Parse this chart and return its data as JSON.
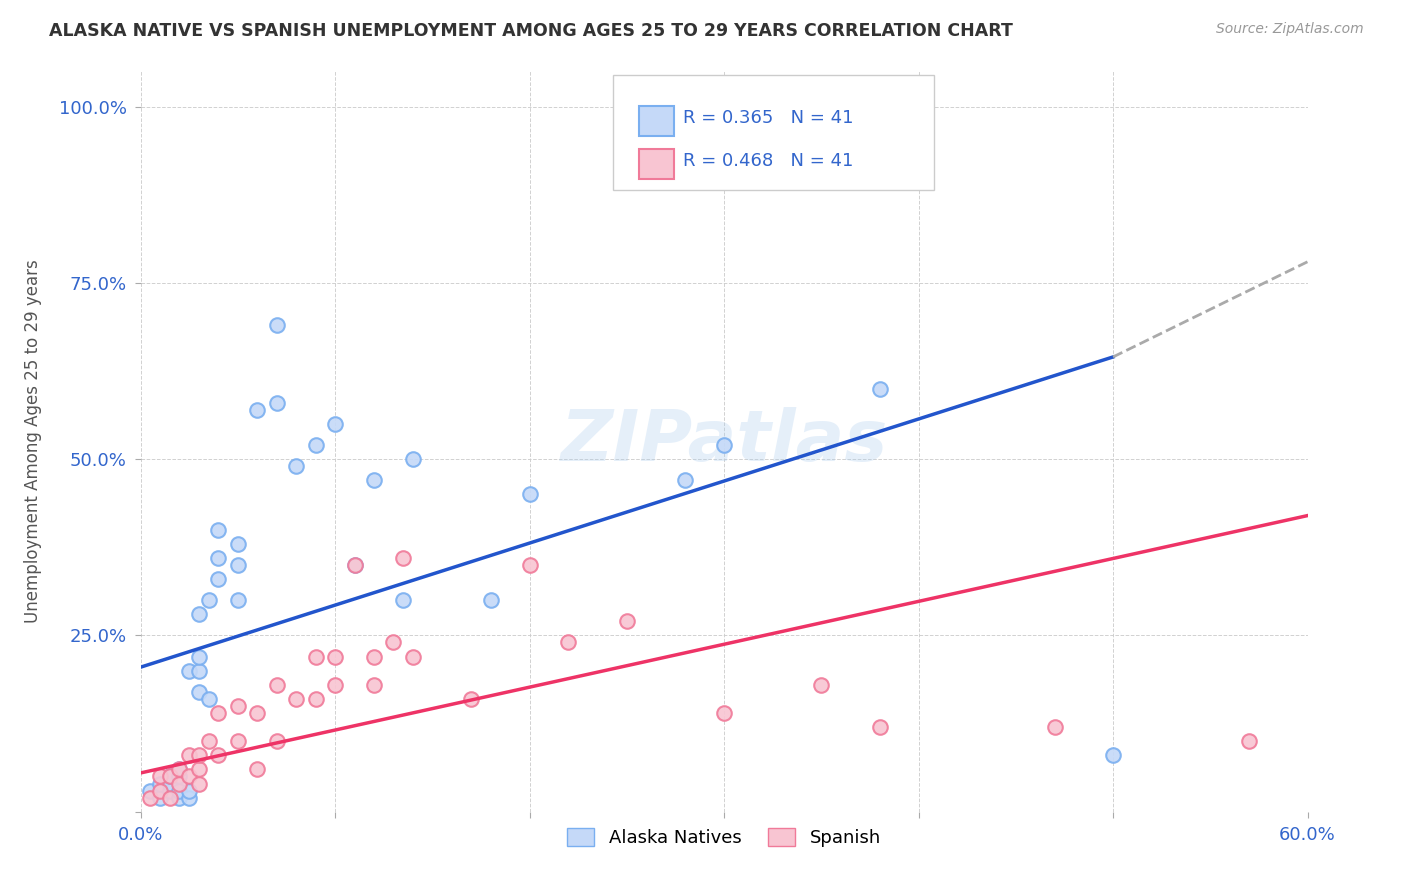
{
  "title": "ALASKA NATIVE VS SPANISH UNEMPLOYMENT AMONG AGES 25 TO 29 YEARS CORRELATION CHART",
  "source": "Source: ZipAtlas.com",
  "ylabel": "Unemployment Among Ages 25 to 29 years",
  "xlim": [
    0.0,
    0.6
  ],
  "ylim": [
    0.0,
    1.05
  ],
  "x_ticks": [
    0.0,
    0.1,
    0.2,
    0.3,
    0.4,
    0.5,
    0.6
  ],
  "x_tick_labels": [
    "0.0%",
    "",
    "",
    "",
    "",
    "",
    "60.0%"
  ],
  "y_ticks": [
    0.0,
    0.25,
    0.5,
    0.75,
    1.0
  ],
  "y_tick_labels": [
    "",
    "25.0%",
    "50.0%",
    "75.0%",
    "100.0%"
  ],
  "alaska_color": "#7aaff0",
  "alaska_color_fill": "#c5d9f8",
  "spanish_color": "#f07a99",
  "spanish_color_fill": "#f8c5d2",
  "trendline_alaska_color": "#2255cc",
  "trendline_spanish_color": "#ee3366",
  "trendline_ext_color": "#aaaaaa",
  "legend_r_alaska": "0.365",
  "legend_n_alaska": "41",
  "legend_r_spanish": "0.468",
  "legend_n_spanish": "41",
  "watermark": "ZIPatlas",
  "alaska_trendline": [
    0.0,
    0.205,
    0.5,
    0.645
  ],
  "alaska_trendline_dash": [
    0.5,
    0.645,
    0.6,
    0.78
  ],
  "spanish_trendline": [
    0.0,
    0.055,
    0.6,
    0.42
  ],
  "alaska_x": [
    0.005,
    0.01,
    0.01,
    0.015,
    0.015,
    0.015,
    0.02,
    0.02,
    0.02,
    0.02,
    0.025,
    0.025,
    0.025,
    0.03,
    0.03,
    0.03,
    0.03,
    0.035,
    0.035,
    0.04,
    0.04,
    0.04,
    0.05,
    0.05,
    0.05,
    0.06,
    0.07,
    0.07,
    0.08,
    0.09,
    0.1,
    0.11,
    0.12,
    0.135,
    0.14,
    0.18,
    0.2,
    0.28,
    0.3,
    0.38,
    0.5
  ],
  "alaska_y": [
    0.03,
    0.02,
    0.04,
    0.03,
    0.04,
    0.05,
    0.02,
    0.03,
    0.05,
    0.06,
    0.02,
    0.03,
    0.2,
    0.17,
    0.2,
    0.22,
    0.28,
    0.16,
    0.3,
    0.33,
    0.36,
    0.4,
    0.3,
    0.35,
    0.38,
    0.57,
    0.58,
    0.69,
    0.49,
    0.52,
    0.55,
    0.35,
    0.47,
    0.3,
    0.5,
    0.3,
    0.45,
    0.47,
    0.52,
    0.6,
    0.08
  ],
  "spanish_x": [
    0.005,
    0.01,
    0.01,
    0.015,
    0.015,
    0.02,
    0.02,
    0.025,
    0.025,
    0.03,
    0.03,
    0.03,
    0.035,
    0.04,
    0.04,
    0.05,
    0.05,
    0.06,
    0.06,
    0.07,
    0.07,
    0.08,
    0.09,
    0.09,
    0.1,
    0.1,
    0.11,
    0.12,
    0.12,
    0.13,
    0.135,
    0.14,
    0.17,
    0.2,
    0.22,
    0.25,
    0.3,
    0.35,
    0.38,
    0.47,
    0.57
  ],
  "spanish_y": [
    0.02,
    0.03,
    0.05,
    0.02,
    0.05,
    0.04,
    0.06,
    0.05,
    0.08,
    0.04,
    0.06,
    0.08,
    0.1,
    0.08,
    0.14,
    0.1,
    0.15,
    0.06,
    0.14,
    0.1,
    0.18,
    0.16,
    0.16,
    0.22,
    0.18,
    0.22,
    0.35,
    0.18,
    0.22,
    0.24,
    0.36,
    0.22,
    0.16,
    0.35,
    0.24,
    0.27,
    0.14,
    0.18,
    0.12,
    0.12,
    0.1
  ]
}
